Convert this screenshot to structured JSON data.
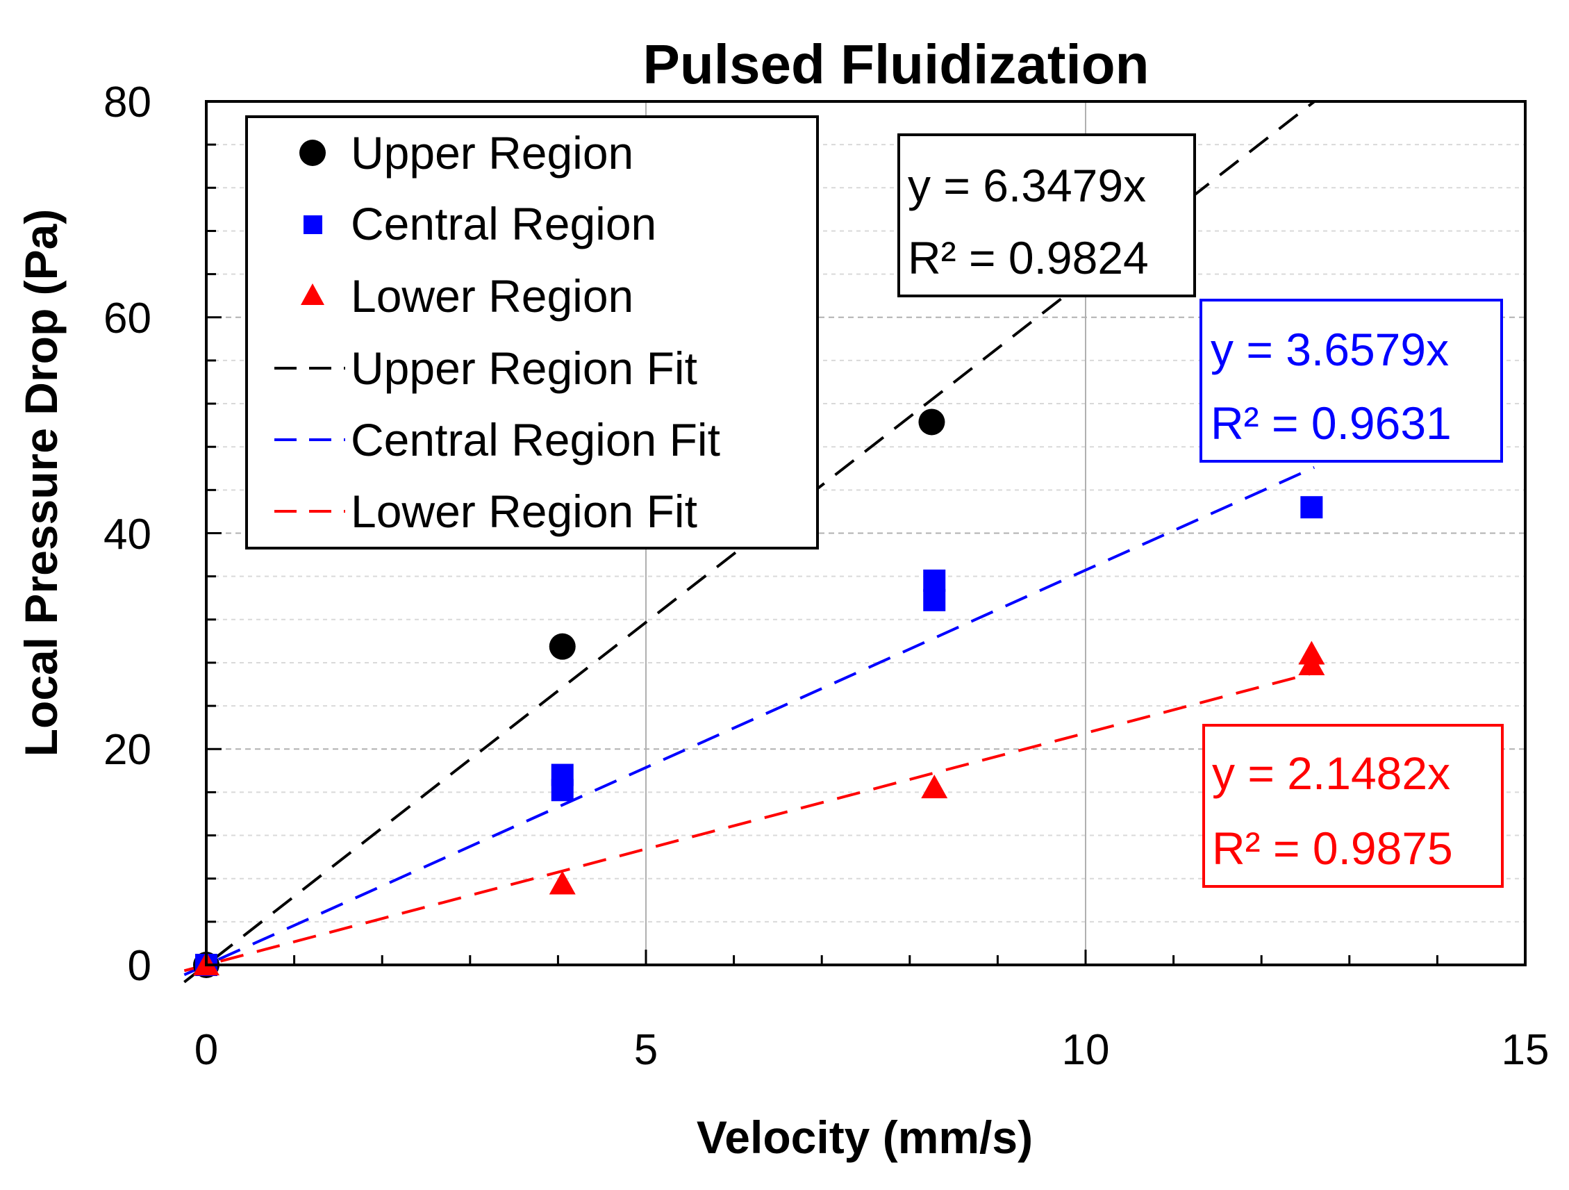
{
  "colors": {
    "upper": "#000000",
    "central": "#0000ff",
    "lower": "#ff0000",
    "grid_major": "#b0b0b0",
    "grid_minor": "#d9d9d9"
  },
  "chart_data": {
    "type": "scatter",
    "title": "Pulsed Fluidization",
    "xlabel": "Velocity (mm/s)",
    "ylabel": "Local Pressure Drop (Pa)",
    "xlim": [
      0,
      15
    ],
    "ylim": [
      0,
      80
    ],
    "x_ticks": [
      "0",
      "5",
      "10",
      "15"
    ],
    "y_ticks": [
      "0",
      "20",
      "40",
      "60",
      "80"
    ],
    "legend_position": "top-left",
    "series": [
      {
        "name": "Upper Region",
        "marker": "circle",
        "color": "#000000",
        "x": [
          0,
          4.05,
          8.25
        ],
        "y": [
          0,
          29.5,
          50.3
        ]
      },
      {
        "name": "Central Region",
        "marker": "square",
        "color": "#0000ff",
        "x": [
          0,
          4.05,
          4.05,
          8.28,
          8.28,
          12.57
        ],
        "y": [
          0,
          16.2,
          17.6,
          33.8,
          35.6,
          42.4
        ]
      },
      {
        "name": "Lower Region",
        "marker": "triangle",
        "color": "#ff0000",
        "x": [
          0,
          4.05,
          8.28,
          12.57,
          12.57
        ],
        "y": [
          0,
          7.5,
          16.4,
          27.8,
          28.8
        ]
      }
    ],
    "fits": [
      {
        "name": "Upper Region Fit",
        "color": "#000000",
        "slope": 6.3479,
        "x_range": [
          0,
          12.6
        ],
        "equation": "y = 6.3479x",
        "r2": "R² = 0.9824"
      },
      {
        "name": "Central Region Fit",
        "color": "#0000ff",
        "slope": 3.6579,
        "x_range": [
          0,
          12.6
        ],
        "equation": "y = 3.6579x",
        "r2": "R² = 0.9631"
      },
      {
        "name": "Lower Region Fit",
        "color": "#ff0000",
        "slope": 2.1482,
        "x_range": [
          0,
          12.6
        ],
        "equation": "y = 2.1482x",
        "r2": "R² = 0.9875"
      }
    ]
  }
}
